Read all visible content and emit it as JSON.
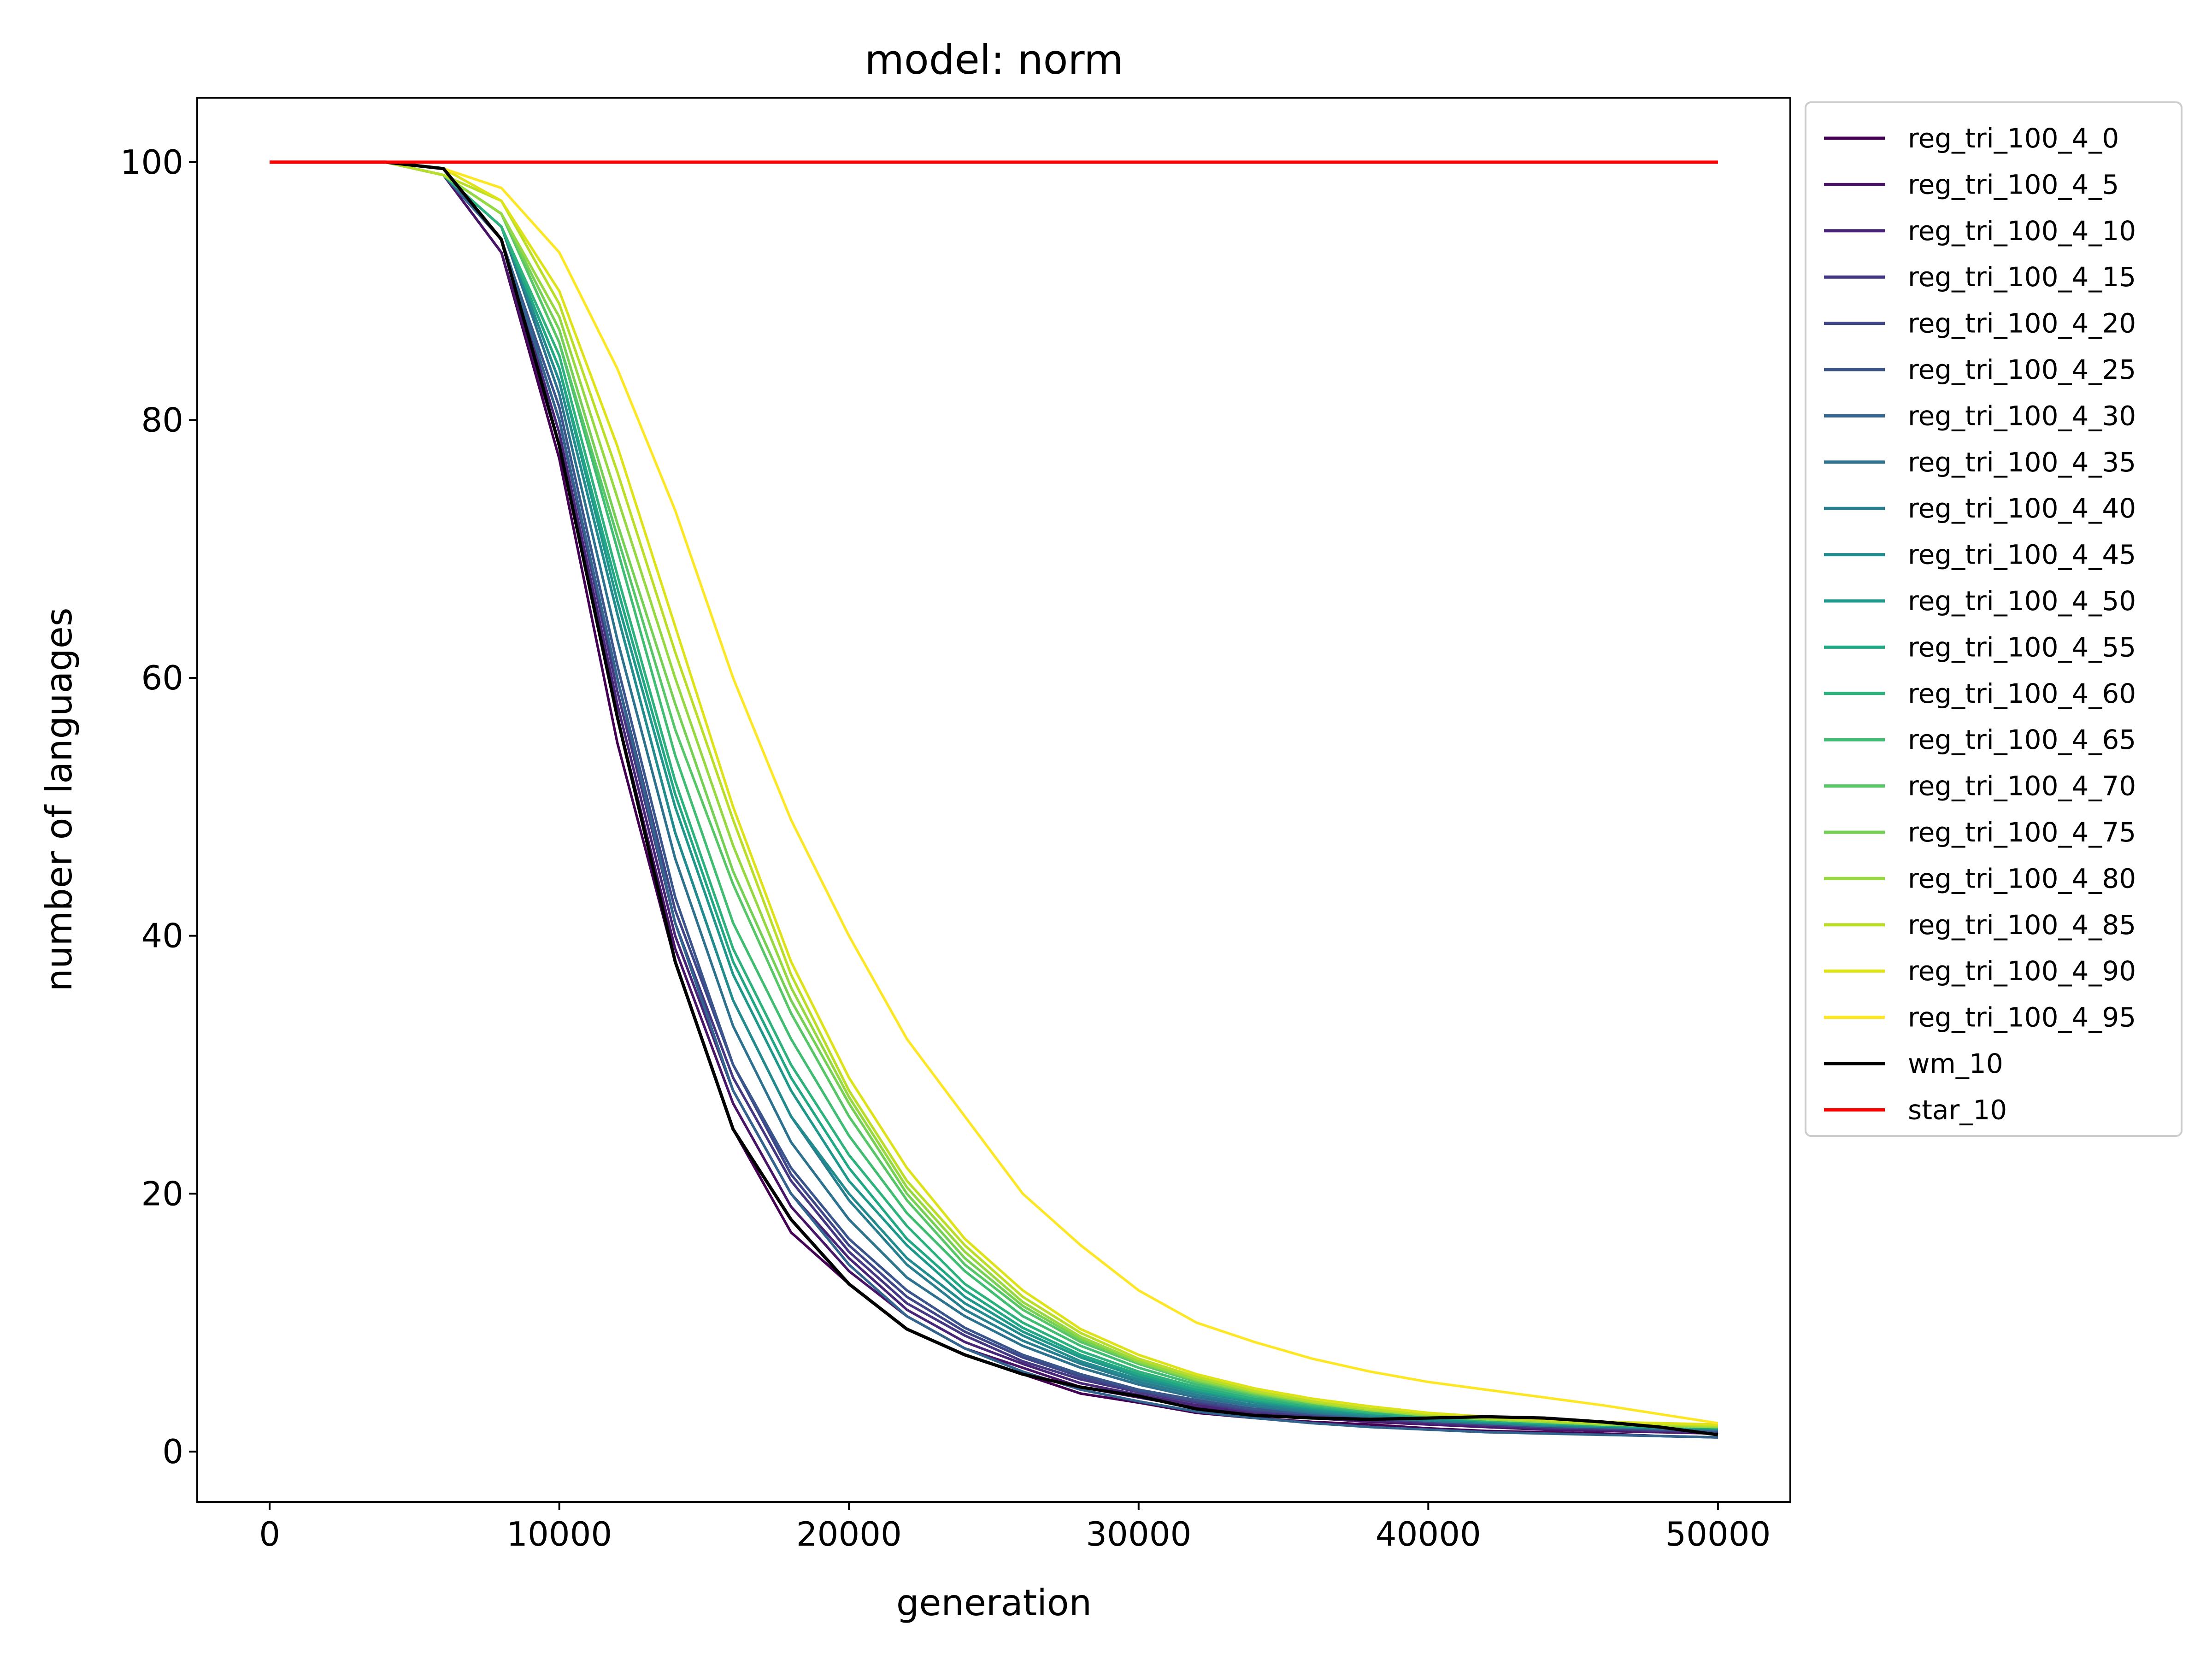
{
  "chart_data": {
    "type": "line",
    "title": "model: norm",
    "xlabel": "generation",
    "ylabel": "number of languages",
    "xlim": [
      -2500,
      52500
    ],
    "ylim": [
      -3.9,
      105
    ],
    "xticks": [
      0,
      10000,
      20000,
      30000,
      40000,
      50000
    ],
    "xtick_labels": [
      "0",
      "10000",
      "20000",
      "30000",
      "40000",
      "50000"
    ],
    "yticks": [
      0,
      20,
      40,
      60,
      80,
      100
    ],
    "ytick_labels": [
      "0",
      "20",
      "40",
      "60",
      "80",
      "100"
    ],
    "grid": false,
    "legend_position": "outside-right-top",
    "x": [
      0,
      2000,
      4000,
      6000,
      8000,
      10000,
      12000,
      14000,
      16000,
      18000,
      20000,
      22000,
      24000,
      26000,
      28000,
      30000,
      32000,
      34000,
      36000,
      38000,
      40000,
      42000,
      44000,
      46000,
      48000,
      50000
    ],
    "series": [
      {
        "name": "reg_tri_100_4_0",
        "color": "#440154",
        "values": [
          100,
          100,
          100,
          99,
          93,
          77,
          55,
          38,
          25,
          17,
          13,
          9.5,
          7.5,
          6,
          4.5,
          3.8,
          3.0,
          2.6,
          2.3,
          2.1,
          1.8,
          1.6,
          1.5,
          1.4,
          1.2,
          1.1
        ]
      },
      {
        "name": "reg_tri_100_4_5",
        "color": "#481467",
        "values": [
          100,
          100,
          100,
          99,
          93,
          78,
          57,
          39,
          27,
          19,
          14,
          10.5,
          8,
          6.5,
          5,
          4.2,
          3.4,
          2.9,
          2.6,
          2.3,
          2.1,
          1.9,
          1.7,
          1.6,
          1.5,
          1.4
        ]
      },
      {
        "name": "reg_tri_100_4_10",
        "color": "#482576",
        "values": [
          100,
          100,
          100,
          99,
          94,
          79,
          58,
          40,
          28,
          20,
          15,
          11,
          8.5,
          6.8,
          5.3,
          4.4,
          3.6,
          3.0,
          2.7,
          2.4,
          2.2,
          2.0,
          1.8,
          1.7,
          1.6,
          1.5
        ]
      },
      {
        "name": "reg_tri_100_4_15",
        "color": "#453781",
        "values": [
          100,
          100,
          100,
          99,
          94,
          80,
          59,
          41,
          29,
          21,
          15.5,
          11.5,
          9,
          7,
          5.6,
          4.6,
          3.8,
          3.1,
          2.8,
          2.5,
          2.3,
          2.1,
          1.9,
          1.8,
          1.6,
          1.5
        ]
      },
      {
        "name": "reg_tri_100_4_20",
        "color": "#3f4788",
        "values": [
          100,
          100,
          100,
          99,
          94,
          80,
          60,
          42,
          30,
          21.5,
          16,
          12,
          9.3,
          7.3,
          5.8,
          4.7,
          3.9,
          3.2,
          2.9,
          2.6,
          2.3,
          2.1,
          1.9,
          1.8,
          1.7,
          1.6
        ]
      },
      {
        "name": "reg_tri_100_4_25",
        "color": "#39558c",
        "values": [
          100,
          100,
          100,
          99,
          94,
          81,
          61,
          43,
          30,
          22,
          16.5,
          12.5,
          9.6,
          7.5,
          6,
          4.8,
          4.0,
          3.3,
          2.9,
          2.6,
          2.4,
          2.2,
          2.0,
          1.9,
          1.7,
          1.6
        ]
      },
      {
        "name": "reg_tri_100_4_30",
        "color": "#32648e",
        "values": [
          100,
          100,
          100,
          99,
          94,
          80,
          60,
          41,
          28,
          20,
          14.5,
          10.5,
          8,
          6.2,
          4.8,
          3.9,
          3.1,
          2.6,
          2.2,
          1.9,
          1.7,
          1.5,
          1.4,
          1.3,
          1.2,
          1.1
        ]
      },
      {
        "name": "reg_tri_100_4_35",
        "color": "#2c718e",
        "values": [
          100,
          100,
          100,
          99,
          95,
          82,
          63,
          46,
          33,
          24,
          18,
          13.5,
          10.5,
          8.2,
          6.5,
          5.2,
          4.2,
          3.5,
          3.0,
          2.7,
          2.4,
          2.2,
          2.0,
          1.9,
          1.8,
          1.7
        ]
      },
      {
        "name": "reg_tri_100_4_40",
        "color": "#277e8e",
        "values": [
          100,
          100,
          100,
          99,
          95,
          83,
          65,
          48,
          35,
          26,
          19.5,
          14.5,
          11,
          8.6,
          6.8,
          5.4,
          4.4,
          3.6,
          3.1,
          2.7,
          2.4,
          2.2,
          2.0,
          1.9,
          1.8,
          1.7
        ]
      },
      {
        "name": "reg_tri_100_4_45",
        "color": "#228b8d",
        "values": [
          100,
          100,
          100,
          99,
          95,
          83,
          65,
          48,
          35,
          26,
          20,
          15,
          11.5,
          9,
          7,
          5.6,
          4.6,
          3.8,
          3.2,
          2.8,
          2.5,
          2.3,
          2.1,
          2.0,
          1.9,
          1.8
        ]
      },
      {
        "name": "reg_tri_100_4_50",
        "color": "#1f988b",
        "values": [
          100,
          100,
          100,
          99,
          95,
          84,
          66,
          50,
          37,
          28,
          21,
          16,
          12,
          9.3,
          7.3,
          5.8,
          4.7,
          3.9,
          3.3,
          2.9,
          2.6,
          2.3,
          2.1,
          2.0,
          1.9,
          1.8
        ]
      },
      {
        "name": "reg_tri_100_4_55",
        "color": "#22a785",
        "values": [
          100,
          100,
          100,
          99,
          95,
          84,
          67,
          51,
          38,
          29,
          22,
          16.5,
          12.5,
          9.6,
          7.5,
          6,
          4.8,
          4.0,
          3.4,
          3.0,
          2.7,
          2.4,
          2.2,
          2.0,
          1.9,
          1.8
        ]
      },
      {
        "name": "reg_tri_100_4_60",
        "color": "#2db27d",
        "values": [
          100,
          100,
          100,
          99,
          95,
          85,
          68,
          52,
          39,
          30,
          23,
          17.5,
          13,
          10,
          7.8,
          6.2,
          5.0,
          4.1,
          3.5,
          3.0,
          2.7,
          2.4,
          2.2,
          2.1,
          2.0,
          1.9
        ]
      },
      {
        "name": "reg_tri_100_4_65",
        "color": "#40bd72",
        "values": [
          100,
          100,
          100,
          99,
          96,
          86,
          70,
          54,
          41,
          32,
          24.5,
          18.5,
          14,
          10.5,
          8.2,
          6.5,
          5.2,
          4.3,
          3.6,
          3.1,
          2.8,
          2.5,
          2.3,
          2.1,
          2.0,
          1.9
        ]
      },
      {
        "name": "reg_tri_100_4_70",
        "color": "#56c667",
        "values": [
          100,
          100,
          100,
          99,
          96,
          86,
          71,
          56,
          44,
          34,
          26,
          19.5,
          14.5,
          11,
          8.5,
          6.8,
          5.4,
          4.4,
          3.7,
          3.2,
          2.8,
          2.5,
          2.3,
          2.1,
          2.0,
          1.9
        ]
      },
      {
        "name": "reg_tri_100_4_75",
        "color": "#75d054",
        "values": [
          100,
          100,
          100,
          99,
          96,
          87,
          72,
          58,
          45,
          35,
          27,
          20,
          15,
          11.3,
          8.7,
          6.9,
          5.5,
          4.5,
          3.8,
          3.2,
          2.8,
          2.5,
          2.3,
          2.1,
          2.0,
          1.9
        ]
      },
      {
        "name": "reg_tri_100_4_80",
        "color": "#95d840",
        "values": [
          100,
          100,
          100,
          99,
          96,
          88,
          74,
          60,
          47,
          36,
          27.5,
          20.5,
          15.5,
          11.6,
          8.9,
          7.0,
          5.6,
          4.6,
          3.8,
          3.2,
          2.8,
          2.5,
          2.3,
          2.1,
          2.0,
          1.9
        ]
      },
      {
        "name": "reg_tri_100_4_85",
        "color": "#bade28",
        "values": [
          100,
          100,
          100,
          99,
          97,
          89,
          76,
          62,
          49,
          37,
          28,
          21,
          16,
          12,
          9.2,
          7.2,
          5.8,
          4.7,
          3.9,
          3.3,
          2.9,
          2.6,
          2.4,
          2.2,
          2.1,
          2.0
        ]
      },
      {
        "name": "reg_tri_100_4_90",
        "color": "#dde318",
        "values": [
          100,
          100,
          100,
          99.5,
          97,
          90,
          78,
          64,
          50,
          38,
          29,
          22,
          16.5,
          12.5,
          9.5,
          7.5,
          6.0,
          4.9,
          4.1,
          3.5,
          3.0,
          2.7,
          2.5,
          2.3,
          2.2,
          2.1
        ]
      },
      {
        "name": "reg_tri_100_4_95",
        "color": "#fde725",
        "values": [
          100,
          100,
          100,
          99.5,
          98,
          93,
          84,
          73,
          60,
          49,
          40,
          32,
          26,
          20,
          16,
          12.5,
          10,
          8.5,
          7.2,
          6.2,
          5.4,
          4.8,
          4.2,
          3.6,
          2.9,
          2.2
        ]
      },
      {
        "name": "wm_10",
        "color": "#000000",
        "values": [
          100,
          100,
          100,
          99.5,
          94,
          78,
          57,
          38,
          25,
          18,
          13,
          9.5,
          7.5,
          6,
          5,
          4.3,
          3.3,
          2.8,
          2.6,
          2.5,
          2.6,
          2.7,
          2.6,
          2.3,
          1.9,
          1.3
        ]
      },
      {
        "name": "star_10",
        "color": "#ff0000",
        "values": [
          100,
          100,
          100,
          100,
          100,
          100,
          100,
          100,
          100,
          100,
          100,
          100,
          100,
          100,
          100,
          100,
          100,
          100,
          100,
          100,
          100,
          100,
          100,
          100,
          100,
          100
        ]
      }
    ]
  }
}
